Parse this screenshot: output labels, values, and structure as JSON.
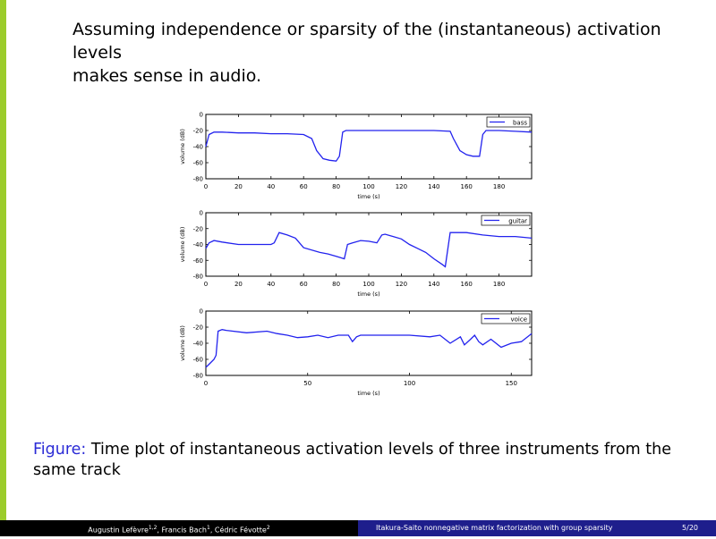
{
  "slide": {
    "text_line1": "Assuming independence or sparsity of the (instantaneous) activation levels",
    "text_line2": "makes sense in audio."
  },
  "caption": {
    "label": "Figure:",
    "text": "Time plot of instantaneous activation levels of three instruments from the same track"
  },
  "footer": {
    "authors": "Augustin Lefèvre",
    "authors_sup": "1,2",
    "author2": ", Francis Bach",
    "author2_sup": "1",
    "author3": ", Cédric Févotte",
    "author3_sup": "2",
    "title": "Itakura-Saito nonnegative matrix factorization with group sparsity",
    "page": "5/20"
  },
  "colors": {
    "line": "#2222ee",
    "accent_bar": "#9bcc2b",
    "footer_right": "#1e1e8c",
    "caption_label": "#2b2bd6"
  },
  "chart_data": [
    {
      "type": "line",
      "xlabel": "time (s)",
      "ylabel": "volume (dB)",
      "xlim": [
        0,
        200
      ],
      "ylim": [
        -80,
        0
      ],
      "xticks": [
        0,
        20,
        40,
        60,
        80,
        100,
        120,
        140,
        160,
        180
      ],
      "yticks": [
        0,
        -20,
        -40,
        -60,
        -80
      ],
      "legend": "top-right",
      "series": [
        {
          "name": "bass",
          "x": [
            0,
            2,
            5,
            10,
            20,
            30,
            40,
            50,
            60,
            65,
            68,
            72,
            76,
            80,
            82,
            84,
            86,
            90,
            100,
            110,
            120,
            140,
            150,
            152,
            156,
            160,
            164,
            166,
            168,
            170,
            172,
            180,
            190,
            200
          ],
          "y": [
            -40,
            -25,
            -22,
            -22,
            -23,
            -23,
            -24,
            -24,
            -25,
            -30,
            -45,
            -55,
            -57,
            -58,
            -52,
            -22,
            -20,
            -20,
            -20,
            -20,
            -20,
            -20,
            -21,
            -30,
            -45,
            -50,
            -52,
            -52,
            -52,
            -25,
            -20,
            -20,
            -21,
            -22
          ]
        }
      ]
    },
    {
      "type": "line",
      "xlabel": "time (s)",
      "ylabel": "volume (dB)",
      "xlim": [
        0,
        200
      ],
      "ylim": [
        -80,
        0
      ],
      "xticks": [
        0,
        20,
        40,
        60,
        80,
        100,
        120,
        140,
        160,
        180
      ],
      "yticks": [
        0,
        -20,
        -40,
        -60,
        -80
      ],
      "legend": "top-right",
      "series": [
        {
          "name": "guitar",
          "x": [
            0,
            2,
            5,
            10,
            20,
            30,
            40,
            42,
            45,
            50,
            55,
            60,
            70,
            75,
            80,
            85,
            87,
            90,
            95,
            100,
            105,
            108,
            110,
            115,
            120,
            125,
            130,
            135,
            140,
            145,
            147,
            150,
            160,
            170,
            180,
            190,
            200
          ],
          "y": [
            -45,
            -38,
            -35,
            -37,
            -40,
            -40,
            -40,
            -38,
            -25,
            -28,
            -32,
            -44,
            -50,
            -52,
            -55,
            -58,
            -40,
            -38,
            -35,
            -36,
            -38,
            -28,
            -27,
            -30,
            -33,
            -40,
            -45,
            -50,
            -58,
            -65,
            -68,
            -25,
            -25,
            -28,
            -30,
            -30,
            -32
          ]
        }
      ]
    },
    {
      "type": "line",
      "xlabel": "time (s)",
      "ylabel": "volume (dB)",
      "xlim": [
        0,
        160
      ],
      "ylim": [
        -80,
        0
      ],
      "xticks": [
        0,
        50,
        100,
        150
      ],
      "yticks": [
        0,
        -20,
        -40,
        -60,
        -80
      ],
      "legend": "top-right",
      "series": [
        {
          "name": "voice",
          "x": [
            0,
            2,
            4,
            5,
            6,
            8,
            10,
            20,
            30,
            35,
            40,
            45,
            50,
            55,
            60,
            65,
            70,
            72,
            74,
            76,
            80,
            90,
            100,
            110,
            115,
            120,
            125,
            127,
            130,
            132,
            134,
            136,
            140,
            145,
            150,
            155,
            160
          ],
          "y": [
            -70,
            -65,
            -60,
            -55,
            -25,
            -23,
            -24,
            -27,
            -25,
            -28,
            -30,
            -33,
            -32,
            -30,
            -33,
            -30,
            -30,
            -38,
            -32,
            -30,
            -30,
            -30,
            -30,
            -32,
            -30,
            -40,
            -32,
            -42,
            -35,
            -30,
            -38,
            -42,
            -35,
            -45,
            -40,
            -38,
            -28
          ]
        }
      ]
    }
  ]
}
